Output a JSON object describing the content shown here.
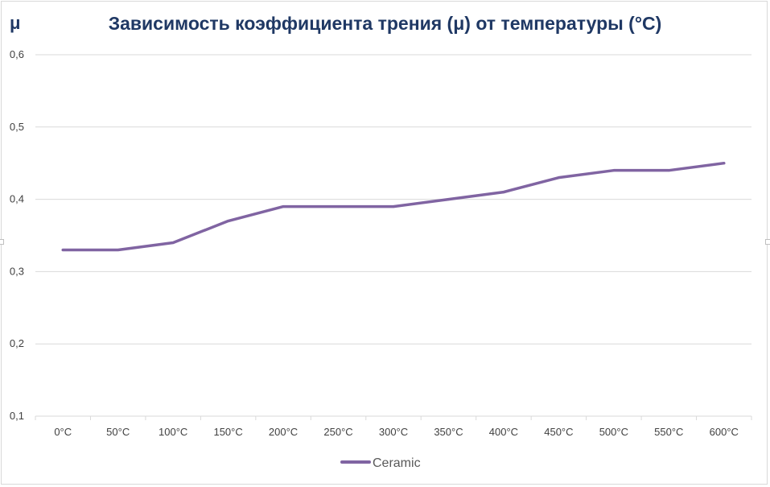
{
  "chart_data": {
    "type": "line",
    "title": "Зависимость коэффициента трения (μ) от температуры (°C)",
    "ylabel": "μ",
    "xlabel": "",
    "categories": [
      "0°C",
      "50°C",
      "100°C",
      "150°C",
      "200°C",
      "250°C",
      "300°C",
      "350°C",
      "400°C",
      "450°C",
      "500°C",
      "550°C",
      "600°C"
    ],
    "y_ticks": [
      "0,1",
      "0,2",
      "0,3",
      "0,4",
      "0,5",
      "0,6"
    ],
    "ylim": [
      0.1,
      0.6
    ],
    "grid": true,
    "legend_position": "bottom",
    "series": [
      {
        "name": "Ceramic",
        "color": "#8064a2",
        "values": [
          0.33,
          0.33,
          0.34,
          0.37,
          0.39,
          0.39,
          0.39,
          0.4,
          0.41,
          0.43,
          0.44,
          0.44,
          0.45
        ]
      }
    ]
  }
}
